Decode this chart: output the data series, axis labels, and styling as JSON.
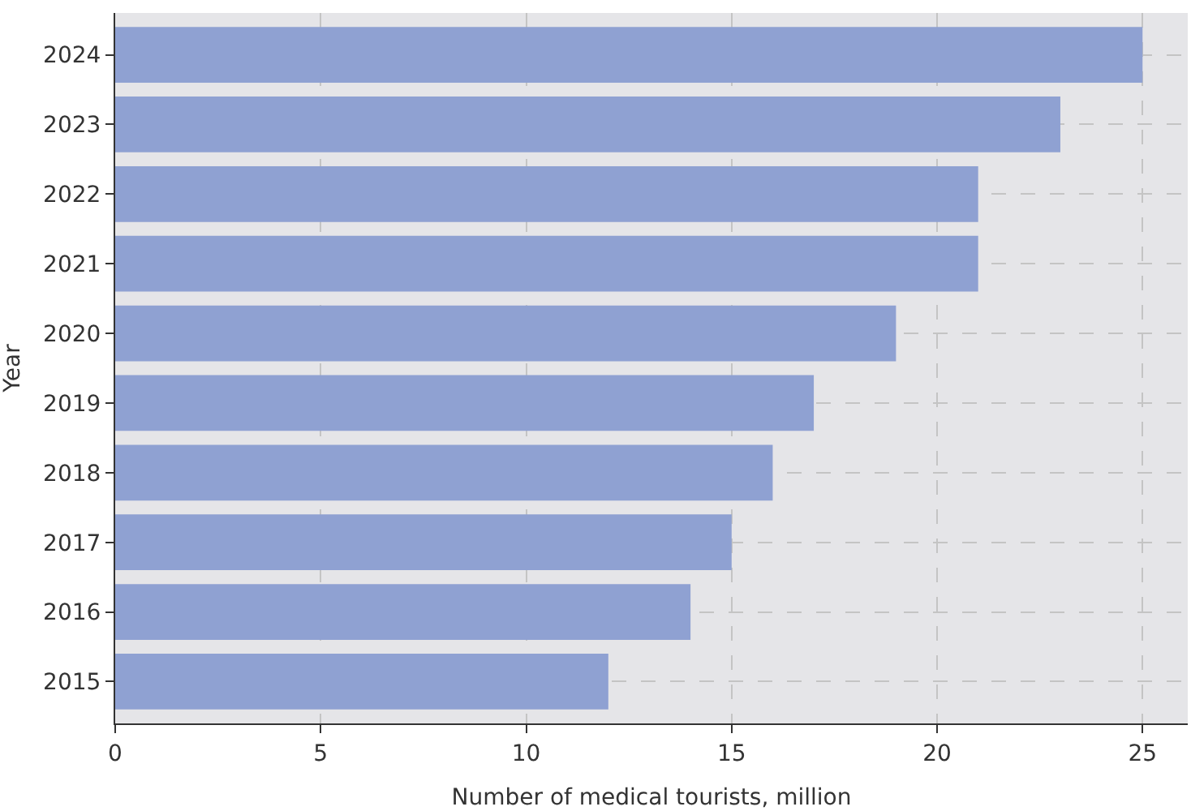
{
  "chart_data": {
    "type": "bar",
    "orientation": "horizontal",
    "xlabel": "Number of medical tourists, million",
    "ylabel": "Year",
    "categories": [
      "2024",
      "2023",
      "2022",
      "2021",
      "2020",
      "2019",
      "2018",
      "2017",
      "2016",
      "2015"
    ],
    "values": [
      25,
      23,
      21,
      21,
      19,
      17,
      16,
      15,
      14,
      12
    ],
    "color": "#8fa1d2",
    "xlim": [
      0,
      26.1
    ],
    "xticks": [
      0,
      5,
      10,
      15,
      20,
      25
    ],
    "grid": true
  }
}
